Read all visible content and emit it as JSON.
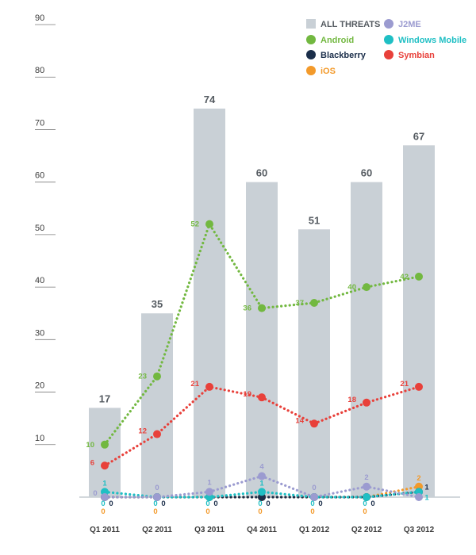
{
  "chart_data": {
    "type": "bar",
    "title": "",
    "xlabel": "",
    "ylabel": "",
    "ylim": [
      0,
      90
    ],
    "yticks": [
      10,
      20,
      30,
      40,
      50,
      60,
      70,
      80,
      90
    ],
    "categories": [
      "Q1 2011",
      "Q2 2011",
      "Q3 2011",
      "Q4 2011",
      "Q1 2012",
      "Q2 2012",
      "Q3 2012"
    ],
    "bar_series": {
      "name": "ALL THREATS",
      "color": "#c9d0d6",
      "values": [
        17,
        35,
        74,
        60,
        51,
        60,
        67
      ]
    },
    "line_series": [
      {
        "name": "Android",
        "color": "#72b840",
        "values": [
          10,
          23,
          52,
          36,
          37,
          40,
          42
        ]
      },
      {
        "name": "Symbian",
        "color": "#e8403a",
        "values": [
          6,
          12,
          21,
          19,
          14,
          18,
          21
        ]
      },
      {
        "name": "J2ME",
        "color": "#9b9bd0",
        "values": [
          0,
          0,
          1,
          4,
          0,
          2,
          0
        ]
      },
      {
        "name": "Windows Mobile",
        "color": "#1fbfc4",
        "values": [
          1,
          0,
          0,
          1,
          0,
          0,
          1
        ]
      },
      {
        "name": "Blackberry",
        "color": "#1b2e4a",
        "values": [
          0,
          0,
          0,
          0,
          0,
          0,
          1
        ]
      },
      {
        "name": "iOS",
        "color": "#f39a2b",
        "values": [
          0,
          0,
          0,
          0,
          0,
          0,
          2
        ]
      }
    ],
    "legend": {
      "placement": "top-right",
      "entries": [
        {
          "label": "ALL THREATS",
          "shape": "square",
          "color": "#c9d0d6"
        },
        {
          "label": "J2ME",
          "shape": "circle",
          "color": "#9b9bd0"
        },
        {
          "label": "Android",
          "shape": "circle",
          "color": "#72b840"
        },
        {
          "label": "Windows Mobile",
          "shape": "circle",
          "color": "#1fbfc4"
        },
        {
          "label": "Blackberry",
          "shape": "circle",
          "color": "#1b2e4a"
        },
        {
          "label": "Symbian",
          "shape": "circle",
          "color": "#e8403a"
        },
        {
          "label": "iOS",
          "shape": "circle",
          "color": "#f39a2b"
        }
      ]
    },
    "zero_labels": {
      "black": [
        "0",
        "0",
        "0",
        "0",
        "0",
        "0"
      ],
      "cyan": [
        "0",
        "0",
        "0",
        "0",
        "0",
        "0"
      ],
      "orange": [
        "0",
        "0",
        "0",
        "0",
        "0",
        "0"
      ]
    },
    "grid": false
  }
}
